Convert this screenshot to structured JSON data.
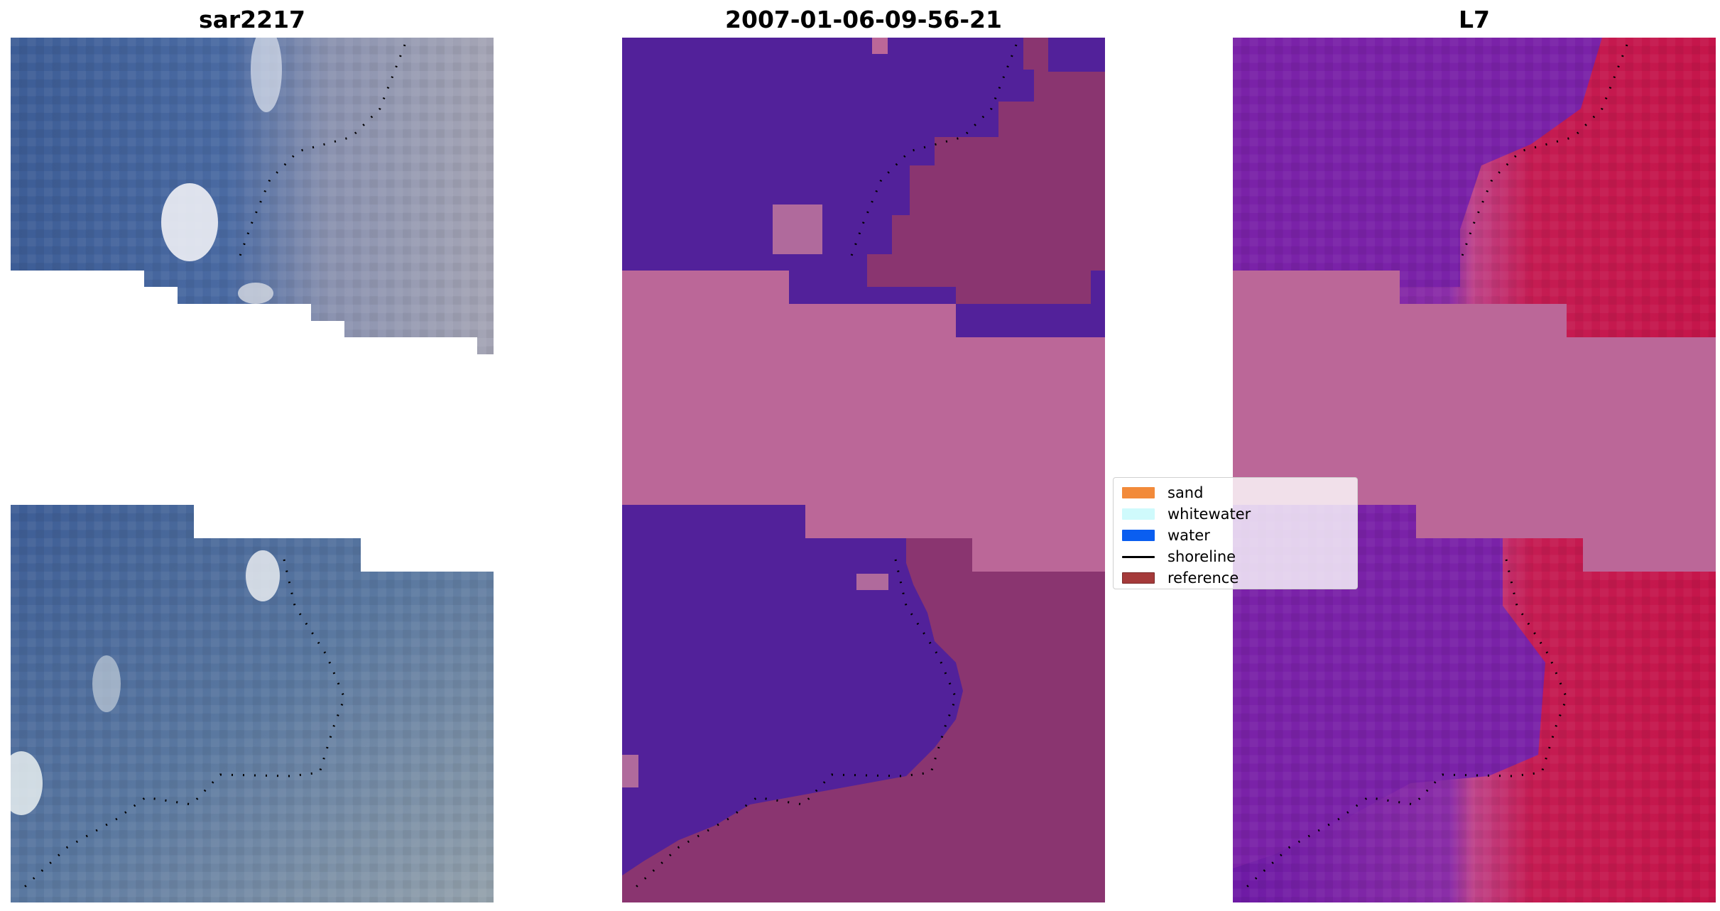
{
  "titles": {
    "rgb": "sar2217",
    "classified": "2007-01-06-09-56-21",
    "mndwi": "L7"
  },
  "legend": [
    {
      "label": "sand",
      "color": "#f28a3a",
      "kind": "patch"
    },
    {
      "label": "whitewater",
      "color": "#cffafc",
      "kind": "patch"
    },
    {
      "label": "water",
      "color": "#0a5ef0",
      "kind": "patch"
    },
    {
      "label": "shoreline",
      "color": "#000000",
      "kind": "line"
    },
    {
      "label": "reference",
      "color": "#a53a3a",
      "kind": "patch"
    }
  ],
  "colors": {
    "nodata_stripe": "#bb6798",
    "classified_water": "#52219a",
    "classified_land": "#8a3570",
    "ndwi_water": "#7a28a8",
    "ndwi_land": "#c5194f",
    "rgb_water": "#3f5f95",
    "rgb_land": "#9a9fb0"
  }
}
